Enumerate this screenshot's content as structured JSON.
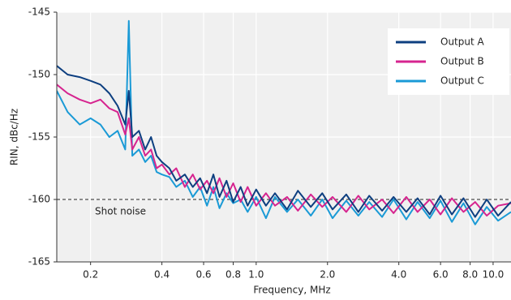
{
  "chart_data": {
    "type": "line",
    "xlabel": "Frequency, MHz",
    "ylabel": "RIN, dBc/Hz",
    "log_x": true,
    "grid": true,
    "legend": "upper right",
    "xlim": [
      0.144,
      11.9
    ],
    "ylim": [
      -165,
      -145
    ],
    "xticks": [
      0.2,
      0.4,
      0.6,
      0.8,
      {
        "value": 1,
        "label": "1.0"
      },
      {
        "value": 2,
        "label": "2.0"
      },
      {
        "value": 4,
        "label": "4.0"
      },
      {
        "value": 6,
        "label": "6.0"
      },
      {
        "value": 8,
        "label": "8.0"
      },
      {
        "value": 10,
        "label": "10.0"
      }
    ],
    "yticks": [
      -165,
      -160,
      -155,
      -150,
      -145
    ],
    "annotation": {
      "text": "Shot noise",
      "y": -160
    },
    "x": [
      0.144,
      0.16,
      0.18,
      0.2,
      0.22,
      0.24,
      0.26,
      0.28,
      0.29,
      0.3,
      0.32,
      0.34,
      0.36,
      0.38,
      0.4,
      0.43,
      0.46,
      0.5,
      0.54,
      0.58,
      0.62,
      0.66,
      0.7,
      0.75,
      0.8,
      0.86,
      0.92,
      1.0,
      1.1,
      1.2,
      1.35,
      1.5,
      1.7,
      1.9,
      2.1,
      2.4,
      2.7,
      3.0,
      3.4,
      3.8,
      4.3,
      4.8,
      5.4,
      6.0,
      6.7,
      7.5,
      8.4,
      9.4,
      10.5,
      11.9
    ],
    "series": [
      {
        "name": "Output A",
        "color": "#0d3f80",
        "values": [
          -149.3,
          -150,
          -150.2,
          -150.5,
          -150.8,
          -151.5,
          -152.5,
          -154,
          -151.3,
          -155,
          -154.5,
          -156,
          -155,
          -156.5,
          -157,
          -157.5,
          -158.5,
          -158,
          -159,
          -158.3,
          -159.5,
          -158,
          -159.8,
          -158.5,
          -160.2,
          -159,
          -160.5,
          -159.2,
          -160.5,
          -159.5,
          -160.8,
          -159.3,
          -160.6,
          -159.5,
          -160.8,
          -159.6,
          -161,
          -159.7,
          -160.9,
          -159.8,
          -161,
          -159.9,
          -161.2,
          -159.7,
          -161.2,
          -159.9,
          -161.4,
          -160,
          -161.3,
          -160.2
        ]
      },
      {
        "name": "Output B",
        "color": "#d6248f",
        "values": [
          -150.8,
          -151.5,
          -152,
          -152.3,
          -152,
          -152.7,
          -153,
          -154.8,
          -153.5,
          -156,
          -155,
          -156.5,
          -156,
          -157.5,
          -157.2,
          -158,
          -157.5,
          -159,
          -158,
          -159.2,
          -158.5,
          -159.5,
          -158.3,
          -159.8,
          -158.7,
          -160.2,
          -159,
          -160.5,
          -159.5,
          -160.5,
          -159.8,
          -160.9,
          -159.6,
          -160.6,
          -159.8,
          -161,
          -159.7,
          -160.8,
          -160,
          -161.1,
          -159.8,
          -161,
          -160,
          -161.2,
          -159.9,
          -161,
          -160.2,
          -161.3,
          -160.5,
          -160.3
        ]
      },
      {
        "name": "Output C",
        "color": "#1a9ad6",
        "values": [
          -151.3,
          -153,
          -154,
          -153.5,
          -154,
          -155,
          -154.5,
          -156,
          -145.7,
          -156.5,
          -156,
          -157,
          -156.5,
          -157.8,
          -158,
          -158.2,
          -159,
          -158.5,
          -159.8,
          -159,
          -160.5,
          -159,
          -160.7,
          -159.5,
          -160.3,
          -160,
          -161,
          -159.8,
          -161.5,
          -159.8,
          -161,
          -160,
          -161.3,
          -160,
          -161.5,
          -160.1,
          -161.3,
          -160.2,
          -161.4,
          -160,
          -161.6,
          -160.2,
          -161.5,
          -160.1,
          -161.8,
          -160.3,
          -162,
          -160.6,
          -161.7,
          -161
        ]
      }
    ]
  }
}
